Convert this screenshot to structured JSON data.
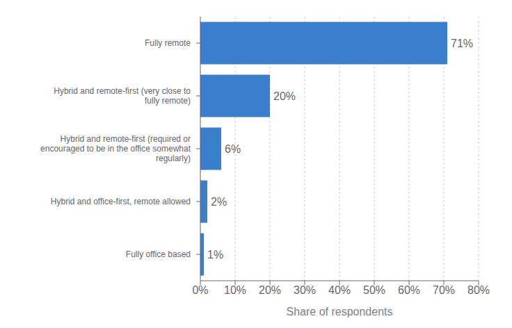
{
  "chart_data": {
    "type": "bar",
    "orientation": "horizontal",
    "categories": [
      "Fully remote",
      "Hybrid and remote-first (very close to\nfully remote)",
      "Hybrid and remote-first (required or\nencouraged to be in the office somewhat\nregularly)",
      "Hybrid and office-first, remote allowed",
      "Fully office based"
    ],
    "values": [
      71,
      20,
      6,
      2,
      1
    ],
    "value_labels": [
      "71%",
      "20%",
      "6%",
      "2%",
      "1%"
    ],
    "data_labels": true,
    "color": "#3a7fcc",
    "xlabel": "Share of respondents",
    "xlim": [
      0,
      80
    ],
    "xticks": [
      {
        "value": 0,
        "label": "0%"
      },
      {
        "value": 10,
        "label": "10%"
      },
      {
        "value": 20,
        "label": "20%"
      },
      {
        "value": 30,
        "label": "30%"
      },
      {
        "value": 40,
        "label": "40%"
      },
      {
        "value": 50,
        "label": "50%"
      },
      {
        "value": 60,
        "label": "60%"
      },
      {
        "value": 70,
        "label": "70%"
      },
      {
        "value": 80,
        "label": "80%"
      }
    ],
    "grid": true
  }
}
